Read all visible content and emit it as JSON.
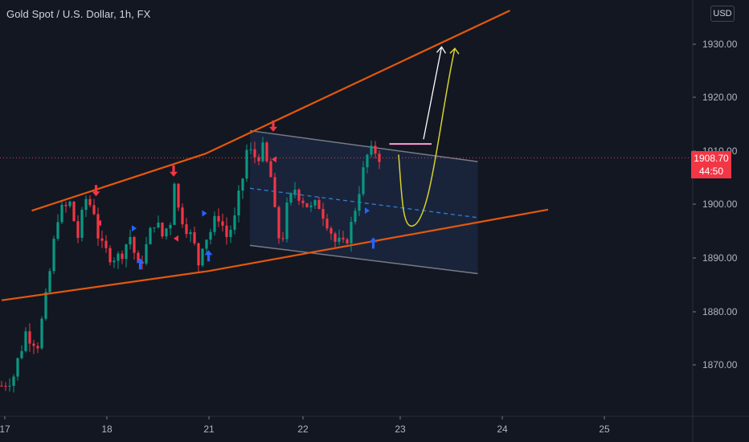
{
  "header": {
    "title": "Gold Spot / U.S. Dollar, 1h, FX",
    "currency": "USD"
  },
  "last_price": {
    "price": "1908.70",
    "countdown": "44:50"
  },
  "colors": {
    "background": "#131722",
    "up": "#089981",
    "down": "#f23645",
    "channel_line": "#e4580c",
    "channel_box": "#1c2a44",
    "arrow_up": "#2962ff",
    "arrow_down": "#f23645",
    "white_arrow": "#ffffff",
    "yellow_curve": "#d8d02a",
    "pink_mark": "#ff9ed6"
  },
  "chart_data": {
    "type": "candlestick",
    "symbol": "Gold Spot / U.S. Dollar",
    "interval": "1h",
    "x_ticks": [
      "17",
      "18",
      "21",
      "22",
      "23",
      "24",
      "25"
    ],
    "y_ticks": [
      "1930.00",
      "1920.00",
      "1910.00",
      "1900.00",
      "1890.00",
      "1880.00",
      "1870.00"
    ],
    "ylim": [
      1858,
      1941
    ],
    "close_path": [
      [
        0,
        1866
      ],
      [
        3,
        1868
      ],
      [
        6,
        1876
      ],
      [
        9,
        1874
      ],
      [
        11,
        1882
      ],
      [
        14,
        1898
      ],
      [
        17,
        1900
      ],
      [
        19,
        1894
      ],
      [
        21,
        1901
      ],
      [
        23,
        1899
      ],
      [
        24.5,
        1892
      ],
      [
        26,
        1891
      ],
      [
        29,
        1890
      ],
      [
        32,
        1894
      ],
      [
        34,
        1888
      ],
      [
        36,
        1892
      ],
      [
        38,
        1897
      ],
      [
        40,
        1894
      ],
      [
        42,
        1897
      ],
      [
        43,
        1905
      ],
      [
        44,
        1899
      ],
      [
        46,
        1896
      ],
      [
        48,
        1892
      ],
      [
        49,
        1889
      ],
      [
        50,
        1893
      ],
      [
        52,
        1895
      ],
      [
        54,
        1898
      ],
      [
        56,
        1894
      ],
      [
        58,
        1897
      ],
      [
        60,
        1905
      ],
      [
        61,
        1910
      ],
      [
        63,
        1909
      ],
      [
        65,
        1910
      ],
      [
        67,
        1905
      ],
      [
        68,
        1898
      ],
      [
        69.5,
        1892
      ],
      [
        71,
        1899
      ],
      [
        73,
        1903
      ],
      [
        75,
        1901
      ],
      [
        77,
        1899
      ],
      [
        79,
        1900
      ],
      [
        81,
        1897
      ],
      [
        83,
        1893
      ],
      [
        85,
        1892
      ],
      [
        86,
        1894
      ],
      [
        87,
        1896
      ],
      [
        89,
        1903
      ],
      [
        91,
        1909
      ],
      [
        93,
        1910
      ],
      [
        94.5,
        1908.7
      ]
    ],
    "annotations": {
      "trendline_upper": [
        [
          7.5,
          1898.8
        ],
        [
          50.8,
          1909.5
        ],
        [
          126.5,
          1936.3
        ]
      ],
      "trendline_lower": [
        [
          0,
          1882
        ],
        [
          51.6,
          1887.5
        ],
        [
          136,
          1899
        ]
      ],
      "channel": {
        "top": [
          [
            61.8,
            1913.8
          ],
          [
            118.5,
            1908
          ]
        ],
        "bottom": [
          [
            61.8,
            1892.3
          ],
          [
            118.5,
            1887
          ]
        ],
        "mid": [
          [
            61.8,
            1903
          ],
          [
            118.5,
            1897.5
          ]
        ]
      },
      "pink_mark": {
        "x": [
          96.5,
          107
        ],
        "y": 1911.3
      },
      "white_arrow": [
        [
          105,
          1912.2
        ],
        [
          109.5,
          1929.5
        ]
      ],
      "yellow_curve": [
        [
          98.8,
          1909.3
        ],
        [
          102.5,
          1896
        ],
        [
          112.8,
          1929.2
        ]
      ],
      "blue_up_arrows": [
        [
          34.5,
          1888.7
        ],
        [
          51.5,
          1890.2
        ],
        [
          92.5,
          1892.6
        ]
      ],
      "red_down_arrows": [
        [
          23.5,
          1902.7
        ],
        [
          42.8,
          1906.4
        ],
        [
          67.6,
          1914.8
        ]
      ],
      "blue_right_flags": [
        [
          33,
          1895.5
        ],
        [
          50.5,
          1898.3
        ],
        [
          91,
          1898.8
        ]
      ],
      "red_left_flags": [
        [
          24.2,
          1896.5
        ],
        [
          43.4,
          1893.6
        ],
        [
          67.8,
          1908.4
        ]
      ]
    }
  }
}
